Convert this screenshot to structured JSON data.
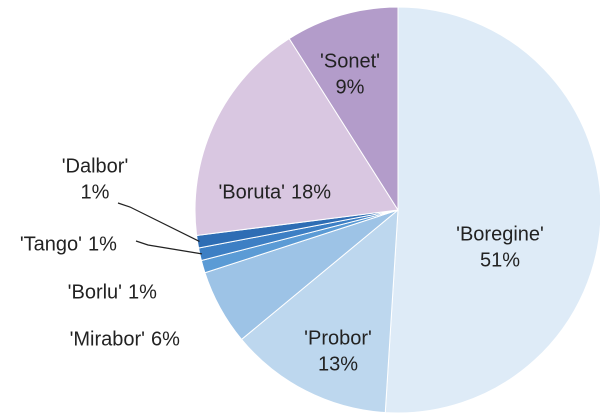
{
  "chart_data": {
    "type": "pie",
    "categories": [
      "'Boregine'",
      "'Probor'",
      "'Mirabor'",
      "'Borlu'",
      "'Tango'",
      "'Dalbor'",
      "'Boruta'",
      "'Sonet'"
    ],
    "values": [
      51,
      13,
      6,
      1,
      1,
      1,
      18,
      9
    ],
    "value_labels": [
      "51%",
      "13%",
      "6%",
      "1%",
      "1%",
      "1%",
      "18%",
      "9%"
    ],
    "colors": [
      "#deebf7",
      "#bdd7ee",
      "#9dc3e6",
      "#5b9bd5",
      "#3d7fc4",
      "#2e6db4",
      "#d9c7e1",
      "#b39cca"
    ]
  }
}
